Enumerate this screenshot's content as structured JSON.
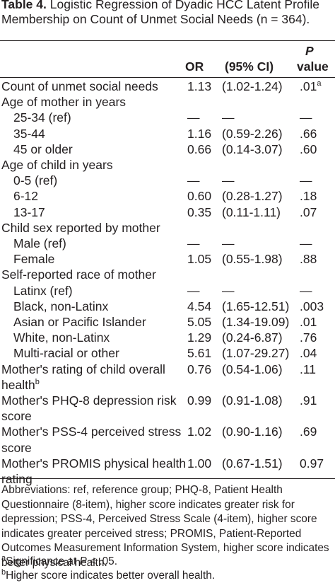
{
  "caption": {
    "label": "Table 4.",
    "text": "Logistic Regression of Dyadic HCC Latent Profile Membership on Count of Unmet Social Needs (n = 364)."
  },
  "columns": {
    "or": "OR",
    "ci": "(95% CI)",
    "p_top": "P",
    "p_bottom": "value"
  },
  "rows": [
    {
      "label": "Count of unmet social needs",
      "or": "1.13",
      "ci": "(1.02-1.24)",
      "p": ".01",
      "p_sup": "a"
    },
    {
      "label": "Age of mother in years"
    },
    {
      "label": "25-34 (ref)",
      "or": "—",
      "ci": "—",
      "p": "—"
    },
    {
      "label": "35-44",
      "or": "1.16",
      "ci": "(0.59-2.26)",
      "p": ".66"
    },
    {
      "label": "45 or older",
      "or": "0.66",
      "ci": "(0.14-3.07)",
      "p": ".60"
    },
    {
      "label": "Age of child in years"
    },
    {
      "label": "0-5 (ref)",
      "or": "—",
      "ci": "—",
      "p": "—"
    },
    {
      "label": "6-12",
      "or": "0.60",
      "ci": "(0.28-1.27)",
      "p": ".18"
    },
    {
      "label": "13-17",
      "or": "0.35",
      "ci": "(0.11-1.11)",
      "p": ".07"
    },
    {
      "label": "Child sex reported by mother"
    },
    {
      "label": "Male (ref)",
      "or": "—",
      "ci": "—",
      "p": "—"
    },
    {
      "label": "Female",
      "or": "1.05",
      "ci": "(0.55-1.98)",
      "p": ".88"
    },
    {
      "label": "Self-reported race of mother"
    },
    {
      "label": "Latinx (ref)",
      "or": "—",
      "ci": "—",
      "p": "—"
    },
    {
      "label": "Black, non-Latinx",
      "or": "4.54",
      "ci": "(1.65-12.51)",
      "p": ".003"
    },
    {
      "label": "Asian or Pacific Islander",
      "or": "5.05",
      "ci": "(1.34-19.09)",
      "p": ".01"
    },
    {
      "label": "White, non-Latinx",
      "or": "1.29",
      "ci": "(0.24-6.87)",
      "p": ".76"
    },
    {
      "label": "Multi-racial or other",
      "or": "5.61",
      "ci": "(1.07-29.27)",
      "p": ".04"
    },
    {
      "label": "Mother's rating of child overall",
      "label2": "health",
      "label2_sup": "b",
      "or": "0.76",
      "ci": "(0.54-1.06)",
      "p": ".11"
    },
    {
      "label": "Mother's PHQ-8 depression risk",
      "label2": "score",
      "or": "0.99",
      "ci": "(0.91-1.08)",
      "p": ".91"
    },
    {
      "label": "Mother's PSS-4 perceived stress",
      "label2": "score",
      "or": "1.02",
      "ci": "(0.90-1.16)",
      "p": ".69"
    },
    {
      "label": "Mother's PROMIS physical health",
      "label2": "rating",
      "or": "1.00",
      "ci": "(0.67-1.51)",
      "p": "0.97"
    }
  ],
  "abbreviations": "Abbreviations: ref, reference group; PHQ-8, Patient Health Questionnaire (8-item), higher score indicates greater risk for depression; PSS-4, Perceived Stress Scale (4-item), higher score indicates greater perceived stress; PROMIS, Patient-Reported Outcomes Measurement Information System, higher score indicates better physical health.",
  "footnotes": [
    {
      "mark": "a",
      "text": "Significance at ",
      "italic": "P",
      "rest": " < .05."
    },
    {
      "mark": "b",
      "text": "Higher score indicates better overall health."
    }
  ]
}
